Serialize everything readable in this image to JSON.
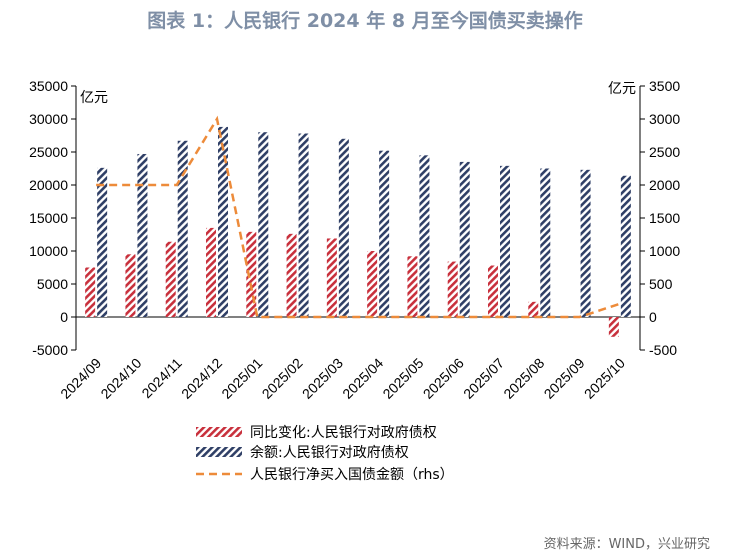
{
  "title": "图表 1：人民银行 2024 年 8 月至今国债买卖操作",
  "source": "资料来源：WIND，兴业研究",
  "chart_data": {
    "type": "bar",
    "categories": [
      "2024/09",
      "2024/10",
      "2024/11",
      "2024/12",
      "2025/01",
      "2025/02",
      "2025/03",
      "2025/04",
      "2025/05",
      "2025/06",
      "2025/07",
      "2025/08",
      "2025/09",
      "2025/10"
    ],
    "y_left": {
      "unit": "亿元",
      "lim": [
        -5000,
        35000
      ],
      "ticks": [
        -5000,
        0,
        5000,
        10000,
        15000,
        20000,
        25000,
        30000,
        35000
      ]
    },
    "y_right": {
      "unit": "亿元",
      "lim": [
        -500,
        3500
      ],
      "ticks": [
        -500,
        0,
        500,
        1000,
        1500,
        2000,
        2500,
        3000,
        3500
      ]
    },
    "series": [
      {
        "name": "同比变化:人民银行对政府债权",
        "axis": "left",
        "kind": "bar",
        "color": "#c8303c",
        "values": [
          7500,
          9500,
          11400,
          13500,
          12900,
          12600,
          11900,
          10000,
          9200,
          8400,
          7800,
          2300,
          0,
          -3000
        ]
      },
      {
        "name": "余额:人民银行对政府债权",
        "axis": "left",
        "kind": "bar",
        "color": "#2f3f66",
        "values": [
          22600,
          24700,
          26700,
          28800,
          28000,
          27800,
          27000,
          25200,
          24500,
          23500,
          22900,
          22500,
          22300,
          21400
        ]
      },
      {
        "name": "人民银行净买入国债金额（rhs）",
        "axis": "right",
        "kind": "line",
        "color": "#ed8b3a",
        "values": [
          2000,
          2000,
          2000,
          3000,
          0,
          0,
          0,
          0,
          0,
          0,
          0,
          0,
          0,
          200
        ]
      }
    ],
    "legend_position": "bottom"
  }
}
